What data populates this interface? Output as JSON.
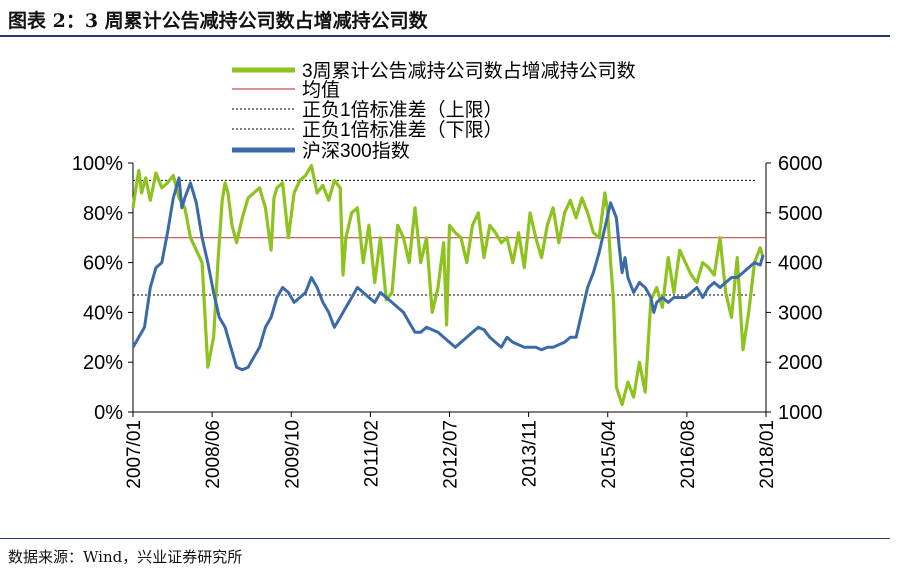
{
  "header": {
    "title": "图表 2：3 周累计公告减持公司数占增减持公司数"
  },
  "footer": {
    "source": "数据来源：Wind，兴业证券研究所"
  },
  "colors": {
    "series_ratio": "#8dc21f",
    "series_index": "#3a6aa8",
    "mean_line": "#c0504d",
    "band_line": "#000000",
    "header_rule": "#1f3b73"
  },
  "chart_data": {
    "type": "line",
    "legend": [
      "3周累计公告减持公司数占增减持公司数",
      "均值",
      "正负1倍标准差（上限）",
      "正负1倍标准差（下限）",
      "沪深300指数"
    ],
    "x_tick_labels": [
      "2007/01",
      "2008/06",
      "2009/10",
      "2011/02",
      "2012/07",
      "2013/11",
      "2015/04",
      "2016/08",
      "2018/01"
    ],
    "x_domain": [
      2007.0,
      2018.0
    ],
    "left_axis": {
      "ylim": [
        0,
        100
      ],
      "ticks": [
        0,
        20,
        40,
        60,
        80,
        100
      ],
      "tick_labels": [
        "0%",
        "20%",
        "40%",
        "60%",
        "80%",
        "100%"
      ]
    },
    "right_axis": {
      "ylim": [
        1000,
        6000
      ],
      "ticks": [
        1000,
        2000,
        3000,
        4000,
        5000,
        6000
      ],
      "tick_labels": [
        "1000",
        "2000",
        "3000",
        "4000",
        "5000",
        "6000"
      ]
    },
    "mean": 70,
    "upper_band": 93,
    "lower_band": 47,
    "series": [
      {
        "name": "3周累计公告减持公司数占增减持公司数",
        "axis": "left",
        "x": [
          2007.0,
          2007.05,
          2007.1,
          2007.15,
          2007.22,
          2007.3,
          2007.4,
          2007.5,
          2007.6,
          2007.7,
          2007.8,
          2007.9,
          2008.0,
          2008.1,
          2008.2,
          2008.3,
          2008.4,
          2008.48,
          2008.55,
          2008.6,
          2008.65,
          2008.72,
          2008.8,
          2008.9,
          2009.0,
          2009.1,
          2009.2,
          2009.3,
          2009.4,
          2009.45,
          2009.5,
          2009.6,
          2009.7,
          2009.8,
          2009.9,
          2010.0,
          2010.1,
          2010.2,
          2010.3,
          2010.4,
          2010.5,
          2010.6,
          2010.65,
          2010.7,
          2010.8,
          2010.9,
          2011.0,
          2011.1,
          2011.2,
          2011.3,
          2011.4,
          2011.5,
          2011.6,
          2011.7,
          2011.8,
          2011.9,
          2012.0,
          2012.1,
          2012.2,
          2012.3,
          2012.4,
          2012.45,
          2012.5,
          2012.6,
          2012.7,
          2012.8,
          2012.9,
          2013.0,
          2013.1,
          2013.2,
          2013.3,
          2013.4,
          2013.5,
          2013.6,
          2013.7,
          2013.8,
          2013.9,
          2014.0,
          2014.1,
          2014.2,
          2014.3,
          2014.4,
          2014.5,
          2014.6,
          2014.7,
          2014.8,
          2014.9,
          2015.0,
          2015.1,
          2015.2,
          2015.25,
          2015.3,
          2015.35,
          2015.4,
          2015.5,
          2015.6,
          2015.7,
          2015.8,
          2015.9,
          2016.0,
          2016.1,
          2016.2,
          2016.3,
          2016.4,
          2016.5,
          2016.6,
          2016.7,
          2016.8,
          2016.9,
          2017.0,
          2017.1,
          2017.2,
          2017.3,
          2017.4,
          2017.5,
          2017.6,
          2017.7,
          2017.8,
          2017.9,
          2017.95
        ],
        "values": [
          82,
          90,
          97,
          88,
          94,
          85,
          96,
          90,
          92,
          95,
          86,
          82,
          70,
          65,
          60,
          18,
          30,
          62,
          85,
          92,
          88,
          75,
          68,
          78,
          86,
          88,
          90,
          82,
          65,
          86,
          90,
          92,
          70,
          88,
          93,
          95,
          99,
          88,
          91,
          85,
          93,
          90,
          55,
          70,
          80,
          82,
          60,
          75,
          52,
          70,
          45,
          48,
          75,
          70,
          60,
          82,
          60,
          70,
          40,
          50,
          68,
          35,
          75,
          72,
          70,
          60,
          75,
          80,
          62,
          75,
          72,
          68,
          70,
          60,
          72,
          58,
          80,
          70,
          62,
          75,
          82,
          68,
          80,
          85,
          78,
          86,
          80,
          72,
          70,
          88,
          80,
          60,
          45,
          10,
          3,
          12,
          6,
          20,
          8,
          45,
          50,
          42,
          62,
          48,
          65,
          60,
          55,
          52,
          60,
          58,
          55,
          70,
          48,
          38,
          62,
          25,
          40,
          60,
          66,
          62
        ],
        "color_key": "series_ratio"
      },
      {
        "name": "沪深300指数",
        "axis": "right",
        "x": [
          2007.0,
          2007.1,
          2007.2,
          2007.3,
          2007.4,
          2007.5,
          2007.6,
          2007.7,
          2007.75,
          2007.8,
          2007.85,
          2007.9,
          2008.0,
          2008.1,
          2008.2,
          2008.3,
          2008.4,
          2008.5,
          2008.6,
          2008.7,
          2008.8,
          2008.9,
          2009.0,
          2009.1,
          2009.2,
          2009.3,
          2009.4,
          2009.5,
          2009.6,
          2009.7,
          2009.8,
          2009.9,
          2010.0,
          2010.1,
          2010.2,
          2010.3,
          2010.4,
          2010.5,
          2010.6,
          2010.7,
          2010.8,
          2010.9,
          2011.0,
          2011.1,
          2011.2,
          2011.3,
          2011.4,
          2011.5,
          2011.6,
          2011.7,
          2011.8,
          2011.9,
          2012.0,
          2012.1,
          2012.2,
          2012.3,
          2012.4,
          2012.5,
          2012.6,
          2012.7,
          2012.8,
          2012.9,
          2013.0,
          2013.1,
          2013.2,
          2013.3,
          2013.4,
          2013.5,
          2013.6,
          2013.7,
          2013.8,
          2013.9,
          2014.0,
          2014.1,
          2014.2,
          2014.3,
          2014.4,
          2014.5,
          2014.6,
          2014.7,
          2014.8,
          2014.9,
          2015.0,
          2015.1,
          2015.2,
          2015.3,
          2015.4,
          2015.45,
          2015.5,
          2015.55,
          2015.6,
          2015.7,
          2015.8,
          2015.9,
          2016.0,
          2016.05,
          2016.1,
          2016.2,
          2016.3,
          2016.4,
          2016.5,
          2016.6,
          2016.7,
          2016.8,
          2016.9,
          2017.0,
          2017.1,
          2017.2,
          2017.3,
          2017.4,
          2017.5,
          2017.6,
          2017.7,
          2017.8,
          2017.9,
          2017.95
        ],
        "values": [
          2300,
          2500,
          2700,
          3500,
          3900,
          4000,
          4600,
          5300,
          5500,
          5700,
          5100,
          5300,
          5600,
          5200,
          4500,
          4000,
          3400,
          2900,
          2700,
          2300,
          1900,
          1850,
          1900,
          2100,
          2300,
          2700,
          2900,
          3300,
          3500,
          3400,
          3200,
          3300,
          3400,
          3700,
          3500,
          3200,
          3000,
          2700,
          2900,
          3100,
          3300,
          3500,
          3400,
          3300,
          3200,
          3400,
          3300,
          3200,
          3100,
          3000,
          2800,
          2600,
          2600,
          2700,
          2650,
          2600,
          2500,
          2400,
          2300,
          2400,
          2500,
          2600,
          2700,
          2650,
          2500,
          2400,
          2300,
          2500,
          2400,
          2350,
          2300,
          2300,
          2300,
          2250,
          2300,
          2300,
          2350,
          2400,
          2500,
          2500,
          3000,
          3500,
          3800,
          4200,
          4700,
          5200,
          4900,
          4300,
          3800,
          4100,
          3700,
          3400,
          3600,
          3500,
          3300,
          3000,
          3200,
          3300,
          3200,
          3300,
          3300,
          3300,
          3400,
          3500,
          3300,
          3500,
          3600,
          3500,
          3600,
          3700,
          3700,
          3800,
          3900,
          4000,
          3950,
          4150
        ],
        "color_key": "series_index"
      }
    ]
  }
}
